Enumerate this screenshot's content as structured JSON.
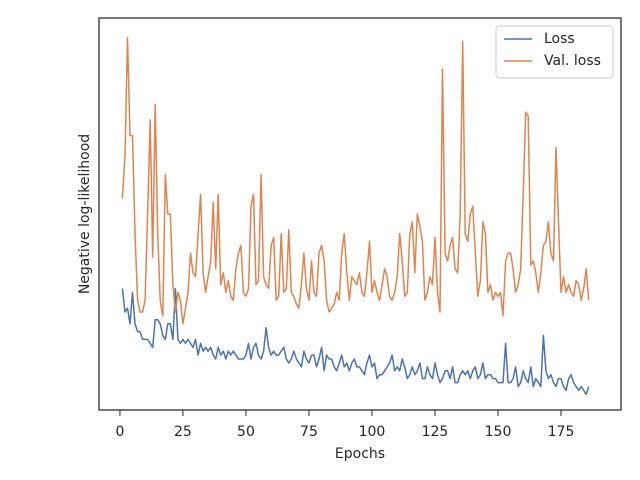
{
  "chart_data": {
    "type": "line",
    "xlabel": "Epochs",
    "ylabel": "Negative log-likelihood",
    "xlim": [
      -8.3,
      198.8
    ],
    "ylim": [
      0,
      100
    ],
    "xticks": [
      0,
      25,
      50,
      75,
      100,
      125,
      150,
      175
    ],
    "legend": "upper right",
    "grid": false,
    "x": [
      1,
      2,
      3,
      4,
      5,
      6,
      7,
      8,
      9,
      10,
      11,
      12,
      13,
      14,
      15,
      16,
      17,
      18,
      19,
      20,
      21,
      22,
      23,
      24,
      25,
      26,
      27,
      28,
      29,
      30,
      31,
      32,
      33,
      34,
      35,
      36,
      37,
      38,
      39,
      40,
      41,
      42,
      43,
      44,
      45,
      46,
      47,
      48,
      49,
      50,
      51,
      52,
      53,
      54,
      55,
      56,
      57,
      58,
      59,
      60,
      61,
      62,
      63,
      64,
      65,
      66,
      67,
      68,
      69,
      70,
      71,
      72,
      73,
      74,
      75,
      76,
      77,
      78,
      79,
      80,
      81,
      82,
      83,
      84,
      85,
      86,
      87,
      88,
      89,
      90,
      91,
      92,
      93,
      94,
      95,
      96,
      97,
      98,
      99,
      100,
      101,
      102,
      103,
      104,
      105,
      106,
      107,
      108,
      109,
      110,
      111,
      112,
      113,
      114,
      115,
      116,
      117,
      118,
      119,
      120,
      121,
      122,
      123,
      124,
      125,
      126,
      127,
      128,
      129,
      130,
      131,
      132,
      133,
      134,
      135,
      136,
      137,
      138,
      139,
      140,
      141,
      142,
      143,
      144,
      145,
      146,
      147,
      148,
      149,
      150,
      151,
      152,
      153,
      154,
      155,
      156,
      157,
      158,
      159,
      160,
      161,
      162,
      163,
      164,
      165,
      166,
      167,
      168,
      169,
      170,
      171,
      172,
      173,
      174,
      175,
      176,
      177,
      178,
      179,
      180,
      181,
      182,
      183,
      184,
      185,
      186
    ],
    "series": [
      {
        "name": "Loss",
        "color": "#4c72b0",
        "values": [
          31,
          25,
          26,
          22,
          30,
          22,
          20,
          20,
          18,
          18,
          18,
          17,
          16,
          23,
          23,
          22,
          19,
          18,
          22,
          22,
          18,
          31,
          18,
          17,
          18,
          17,
          18,
          17,
          16,
          18,
          14,
          17,
          15,
          16,
          15,
          16,
          14,
          13,
          16,
          14,
          15,
          13,
          15,
          14,
          15,
          14,
          13,
          13,
          13,
          14,
          17,
          13,
          16,
          17,
          14,
          13,
          15,
          21,
          16,
          14,
          15,
          14,
          14,
          15,
          16,
          13,
          12,
          13,
          15,
          13,
          12,
          11,
          15,
          13,
          12,
          14,
          14,
          11,
          13,
          16,
          10,
          14,
          13,
          13,
          11,
          10,
          12,
          14,
          11,
          12,
          10,
          12,
          13,
          11,
          11,
          10,
          9,
          12,
          14,
          11,
          12,
          8,
          9,
          9,
          10,
          11,
          12,
          14,
          10,
          11,
          10,
          13,
          11,
          8,
          9,
          11,
          9,
          10,
          12,
          8,
          8,
          11,
          9,
          8,
          12,
          9,
          7,
          8,
          10,
          10,
          8,
          11,
          7,
          7,
          9,
          10,
          9,
          10,
          8,
          10,
          11,
          8,
          9,
          12,
          8,
          9,
          9,
          8,
          8,
          7,
          7,
          7,
          17,
          7,
          7,
          8,
          11,
          6,
          7,
          10,
          8,
          7,
          11,
          6,
          8,
          7,
          6,
          19,
          10,
          8,
          9,
          7,
          6,
          8,
          8,
          6,
          5,
          8,
          9,
          7,
          6,
          5,
          6,
          5,
          4,
          6
        ]
      },
      {
        "name": "Val. loss",
        "color": "#dd8452",
        "values": [
          54,
          65,
          95,
          70,
          70,
          45,
          28,
          25,
          25,
          28,
          50,
          74,
          39,
          78,
          45,
          28,
          24,
          60,
          50,
          50,
          32,
          25,
          30,
          28,
          22,
          26,
          30,
          40,
          35,
          34,
          45,
          55,
          35,
          30,
          34,
          38,
          53,
          36,
          55,
          32,
          35,
          30,
          33,
          29,
          28,
          36,
          40,
          42,
          30,
          29,
          31,
          52,
          55,
          32,
          33,
          60,
          34,
          32,
          31,
          42,
          44,
          28,
          29,
          45,
          30,
          31,
          46,
          30,
          29,
          27,
          26,
          32,
          40,
          31,
          28,
          38,
          30,
          29,
          40,
          42,
          38,
          28,
          25,
          26,
          27,
          30,
          28,
          40,
          45,
          35,
          28,
          34,
          33,
          32,
          35,
          30,
          29,
          35,
          43,
          30,
          33,
          30,
          28,
          32,
          36,
          34,
          29,
          28,
          30,
          34,
          45,
          38,
          29,
          30,
          45,
          48,
          35,
          50,
          47,
          43,
          28,
          30,
          34,
          32,
          44,
          30,
          25,
          87,
          40,
          38,
          42,
          44,
          36,
          35,
          50,
          94,
          45,
          43,
          50,
          52,
          40,
          29,
          33,
          48,
          45,
          30,
          32,
          28,
          30,
          29,
          30,
          24,
          38,
          40,
          40,
          36,
          30,
          32,
          36,
          55,
          76,
          75,
          37,
          38,
          35,
          30,
          35,
          42,
          43,
          48,
          40,
          38,
          67,
          48,
          30,
          34,
          30,
          32,
          30,
          29,
          33,
          32,
          28,
          31,
          36,
          28
        ]
      }
    ]
  }
}
